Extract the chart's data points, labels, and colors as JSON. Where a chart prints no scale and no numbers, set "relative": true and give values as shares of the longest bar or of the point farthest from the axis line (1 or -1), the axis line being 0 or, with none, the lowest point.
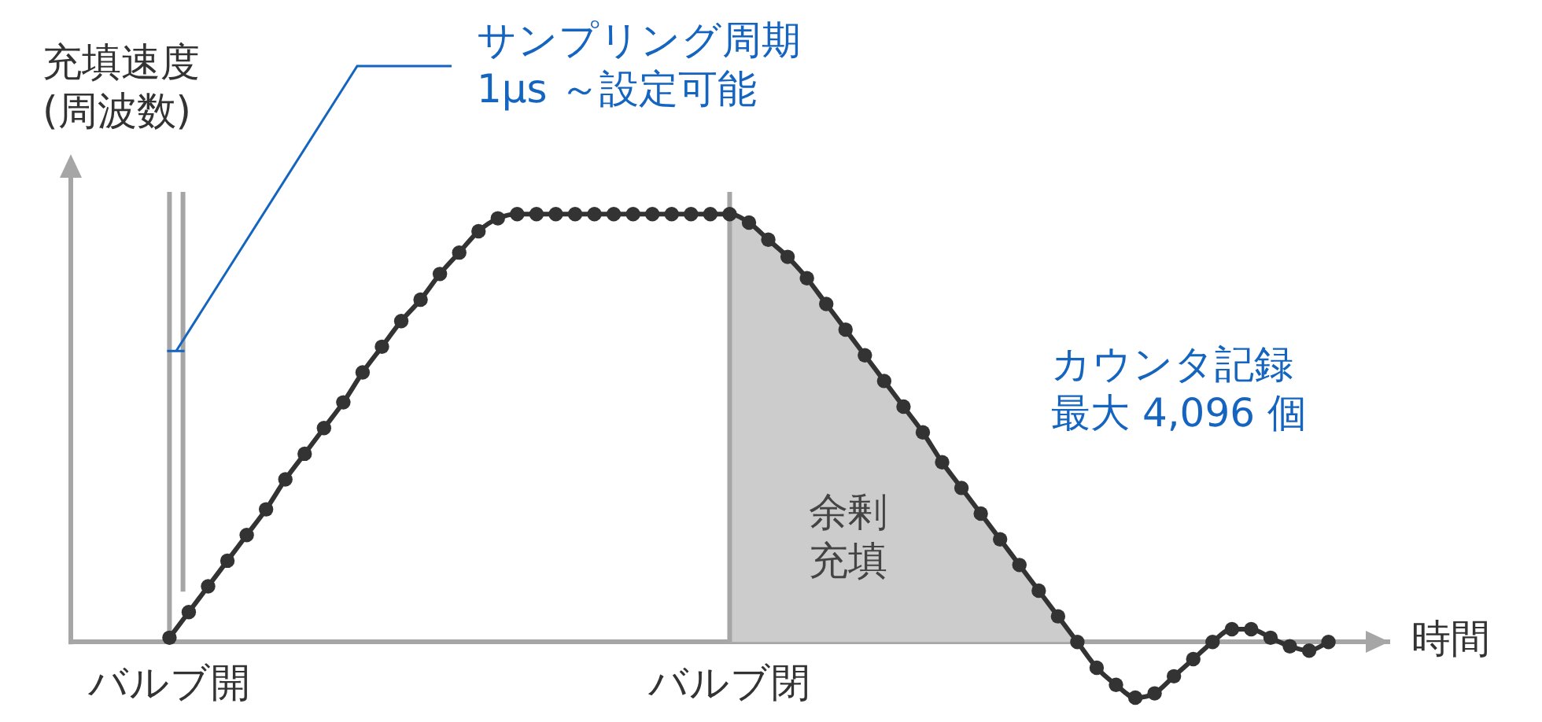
{
  "chart_data": {
    "type": "line",
    "xlabel": "時間",
    "ylabel": "充填速度(周波数)",
    "relative": true,
    "categories": [
      "バルブ開",
      null,
      null,
      null,
      null,
      null,
      null,
      null,
      null,
      null,
      null,
      null,
      null,
      null,
      null,
      null,
      null,
      null,
      null,
      null,
      null,
      null,
      null,
      null,
      null,
      null,
      null,
      null,
      null,
      "バルブ閉",
      null,
      null,
      null,
      null,
      null,
      null,
      null,
      null,
      null,
      null,
      null,
      null,
      null,
      null,
      null,
      null,
      null,
      null,
      null,
      null,
      null,
      null,
      null,
      null,
      null,
      null,
      null,
      null,
      null,
      null,
      null
    ],
    "series": [
      {
        "color": "#333333",
        "values": [
          0.01,
          0.07,
          0.13,
          0.19,
          0.25,
          0.31,
          0.38,
          0.44,
          0.5,
          0.56,
          0.63,
          0.69,
          0.75,
          0.8,
          0.86,
          0.91,
          0.96,
          0.99,
          1,
          1,
          1,
          1,
          1,
          1,
          1,
          1,
          1,
          1,
          1,
          1,
          0.98,
          0.94,
          0.9,
          0.85,
          0.79,
          0.73,
          0.67,
          0.61,
          0.55,
          0.49,
          0.42,
          0.36,
          0.3,
          0.24,
          0.18,
          0.12,
          0.06,
          0,
          -0.06,
          -0.1,
          -0.13,
          -0.12,
          -0.08,
          -0.04,
          0,
          0.03,
          0.03,
          0.01,
          -0.01,
          -0.02,
          0
        ]
      },
      {
        "type": "area",
        "name": "余剰充填",
        "color": "#cccccc",
        "marker": "none",
        "values": [
          null,
          null,
          null,
          null,
          null,
          null,
          null,
          null,
          null,
          null,
          null,
          null,
          null,
          null,
          null,
          null,
          null,
          null,
          null,
          null,
          null,
          null,
          null,
          null,
          null,
          null,
          null,
          null,
          null,
          1,
          0.98,
          0.94,
          0.9,
          0.85,
          0.79,
          0.73,
          0.67,
          0.61,
          0.55,
          0.49,
          0.42,
          0.36,
          0.3,
          0.24,
          0.18,
          0.12,
          0.06,
          0,
          null,
          null,
          null,
          null,
          null,
          null,
          null,
          null,
          null,
          null,
          null,
          null,
          null
        ]
      }
    ],
    "ref_lines": [
      {
        "axis": "x",
        "value": "バルブ開",
        "color": "#a6a6a6"
      },
      {
        "axis": "x",
        "value": "バルブ閉",
        "color": "#a6a6a6"
      }
    ],
    "annotations": [
      {
        "text": "サンプリング周期1μs ～設定可能",
        "x": "バルブ開",
        "y": 0.68
      },
      "カウンタ記録最大 4,096 個"
    ],
    "marker": "circle",
    "legend": false,
    "grid": false
  }
}
